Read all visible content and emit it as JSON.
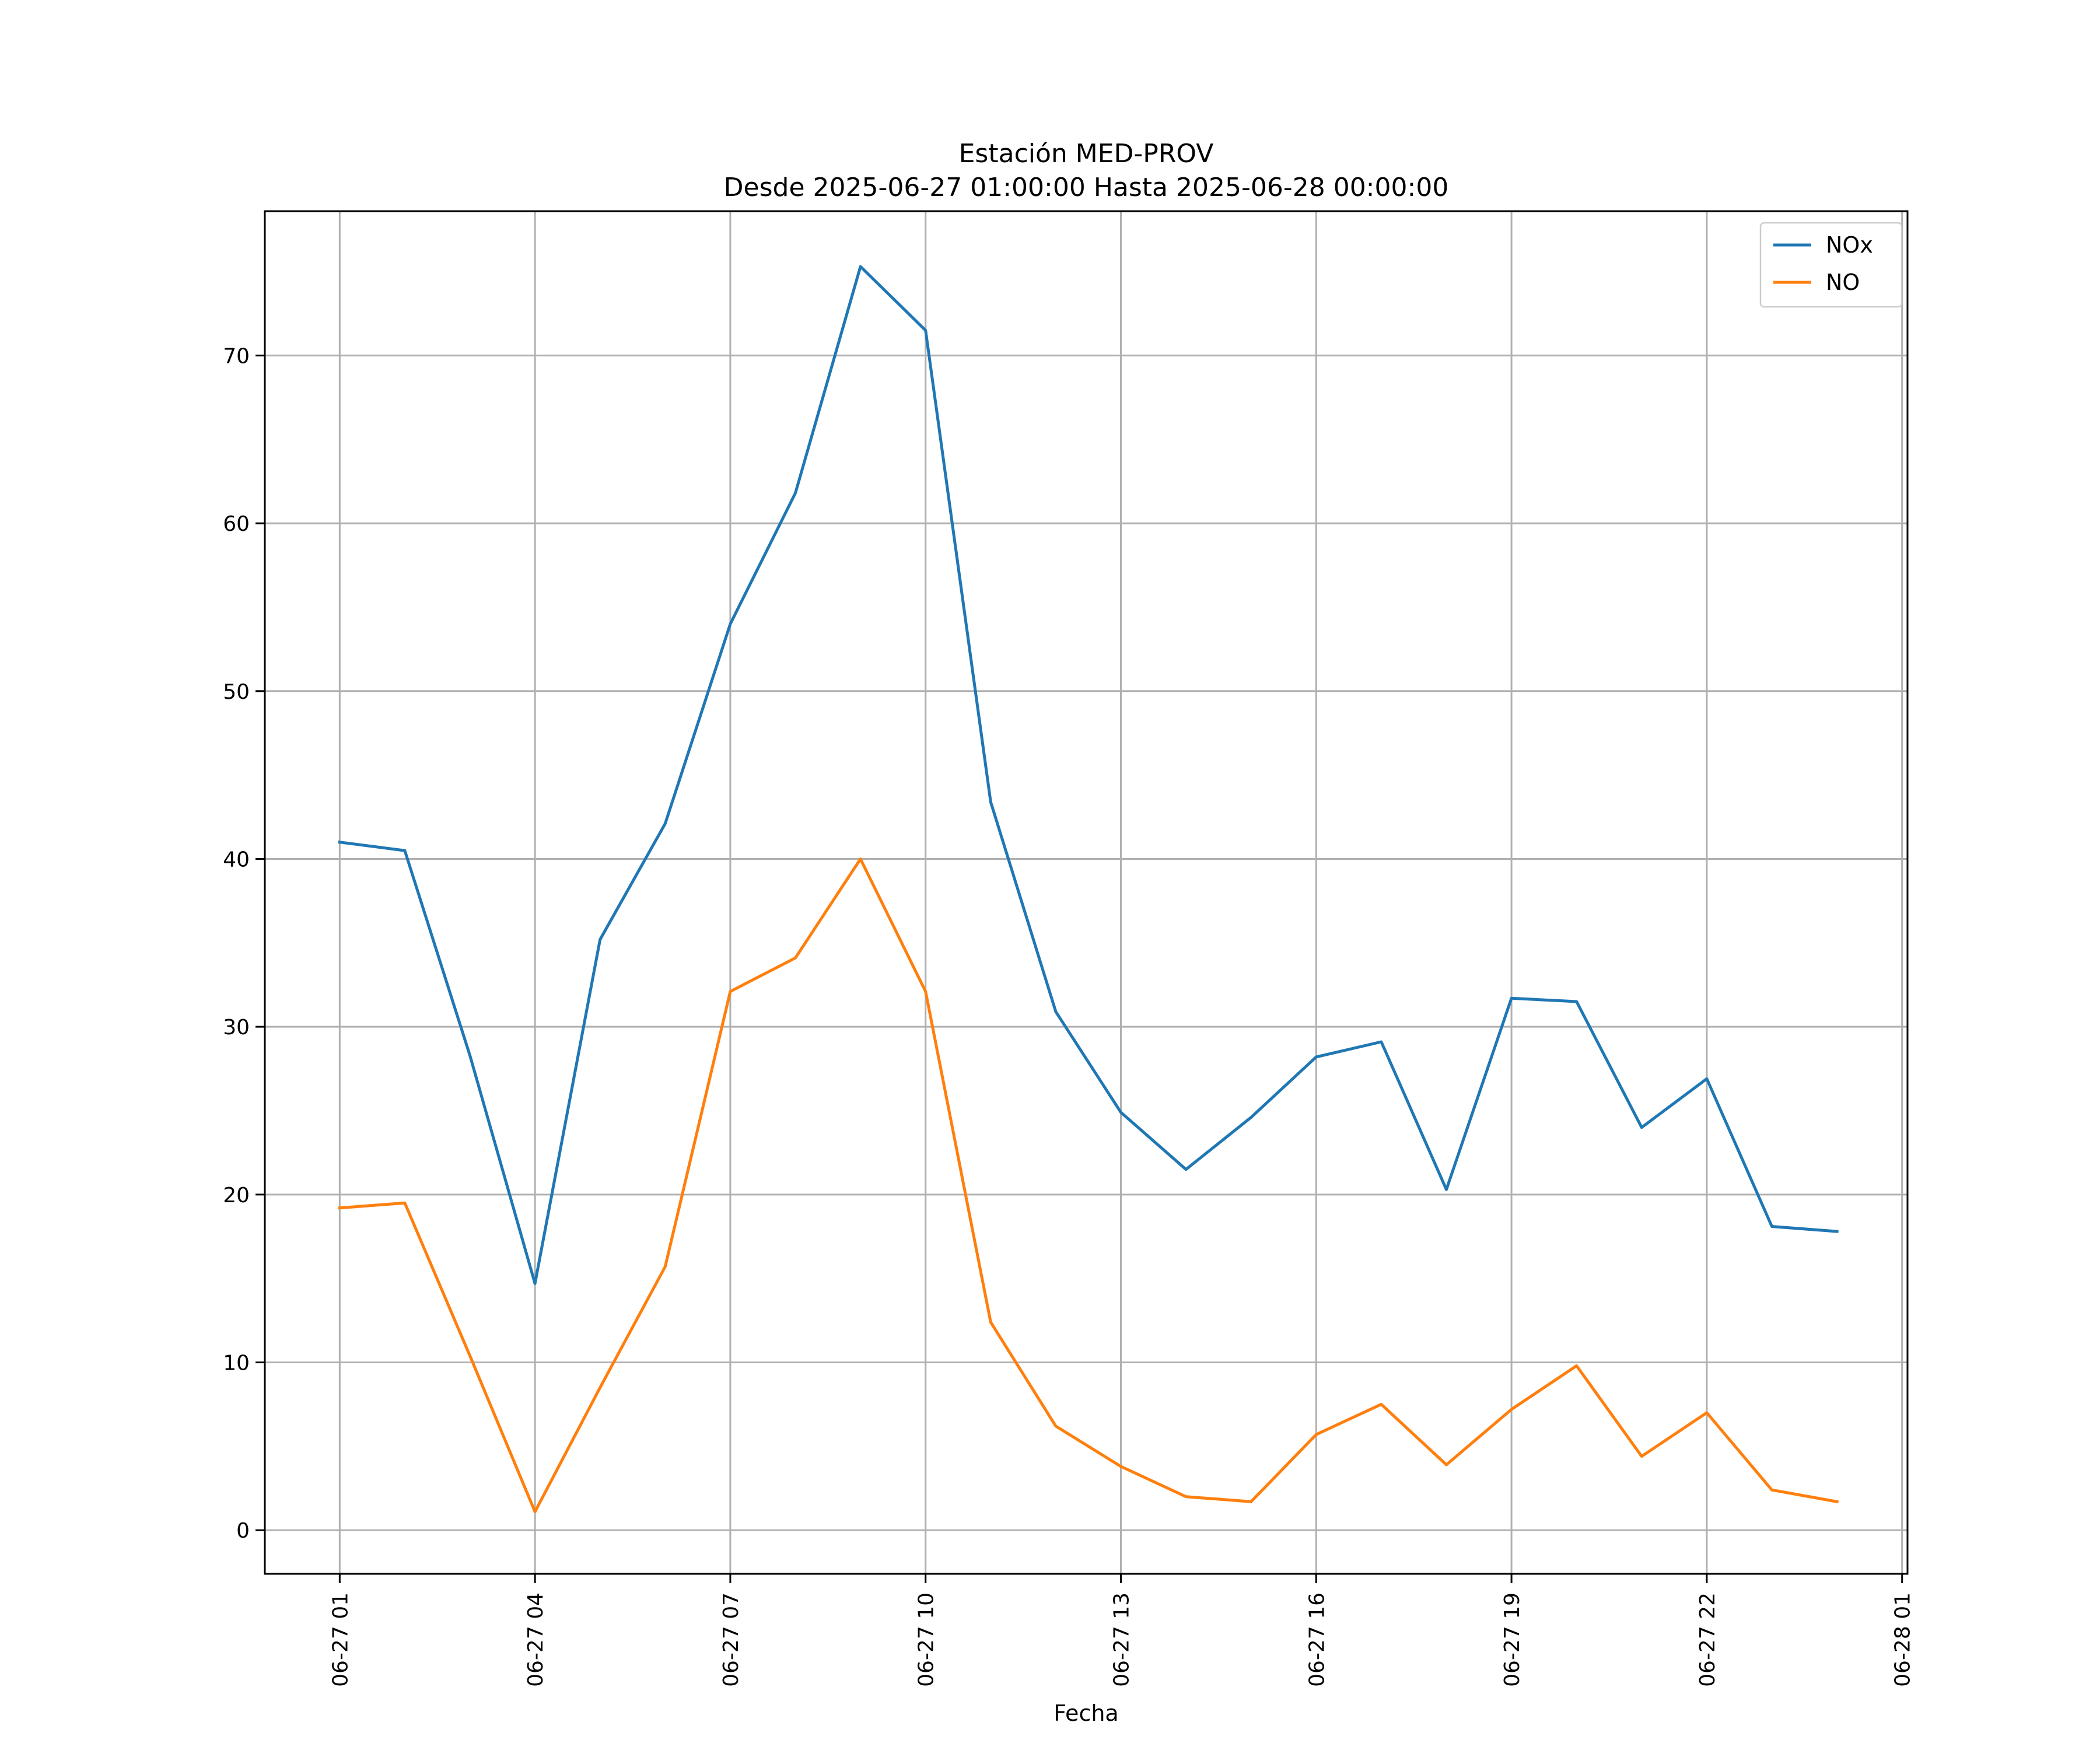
{
  "chart_data": {
    "type": "line",
    "title": "Estación MED-PROV",
    "subtitle": "Desde 2025-06-27 01:00:00 Hasta 2025-06-28 00:00:00",
    "xlabel": "Fecha",
    "ylabel": "",
    "x": [
      "2025-06-27 01:00",
      "2025-06-27 02:00",
      "2025-06-27 03:00",
      "2025-06-27 04:00",
      "2025-06-27 05:00",
      "2025-06-27 06:00",
      "2025-06-27 07:00",
      "2025-06-27 08:00",
      "2025-06-27 09:00",
      "2025-06-27 10:00",
      "2025-06-27 11:00",
      "2025-06-27 12:00",
      "2025-06-27 13:00",
      "2025-06-27 14:00",
      "2025-06-27 15:00",
      "2025-06-27 16:00",
      "2025-06-27 17:00",
      "2025-06-27 18:00",
      "2025-06-27 19:00",
      "2025-06-27 20:00",
      "2025-06-27 21:00",
      "2025-06-27 22:00",
      "2025-06-27 23:00",
      "2025-06-28 00:00"
    ],
    "xlim": [
      "2025-06-26 23:51",
      "2025-06-28 01:05"
    ],
    "ylim": [
      -2.6,
      78.6
    ],
    "x_ticks": [
      {
        "value": "2025-06-27 01:00",
        "label": "06-27 01"
      },
      {
        "value": "2025-06-27 04:00",
        "label": "06-27 04"
      },
      {
        "value": "2025-06-27 07:00",
        "label": "06-27 07"
      },
      {
        "value": "2025-06-27 10:00",
        "label": "06-27 10"
      },
      {
        "value": "2025-06-27 13:00",
        "label": "06-27 13"
      },
      {
        "value": "2025-06-27 16:00",
        "label": "06-27 16"
      },
      {
        "value": "2025-06-27 19:00",
        "label": "06-27 19"
      },
      {
        "value": "2025-06-27 22:00",
        "label": "06-27 22"
      },
      {
        "value": "2025-06-28 01:00",
        "label": "06-28 01"
      }
    ],
    "y_ticks": [
      {
        "value": 0,
        "label": "0"
      },
      {
        "value": 10,
        "label": "10"
      },
      {
        "value": 20,
        "label": "20"
      },
      {
        "value": 30,
        "label": "30"
      },
      {
        "value": 40,
        "label": "40"
      },
      {
        "value": 50,
        "label": "50"
      },
      {
        "value": 60,
        "label": "60"
      },
      {
        "value": 70,
        "label": "70"
      }
    ],
    "grid": true,
    "legend_position": "top-right",
    "series": [
      {
        "name": "NOx",
        "color": "#1f77b4",
        "values": [
          41.0,
          40.5,
          28.3,
          14.7,
          35.2,
          42.1,
          54.0,
          61.8,
          75.3,
          71.5,
          43.4,
          30.9,
          24.9,
          21.5,
          24.6,
          28.2,
          29.1,
          20.3,
          31.7,
          31.5,
          24.0,
          26.9,
          18.1,
          17.8
        ]
      },
      {
        "name": "NO",
        "color": "#ff7f0e",
        "values": [
          19.2,
          19.5,
          10.4,
          1.1,
          8.5,
          15.7,
          32.1,
          34.1,
          40.0,
          32.1,
          12.4,
          6.2,
          3.8,
          2.0,
          1.7,
          5.7,
          7.5,
          3.9,
          7.2,
          9.8,
          4.4,
          7.0,
          2.4,
          1.7
        ]
      }
    ]
  }
}
